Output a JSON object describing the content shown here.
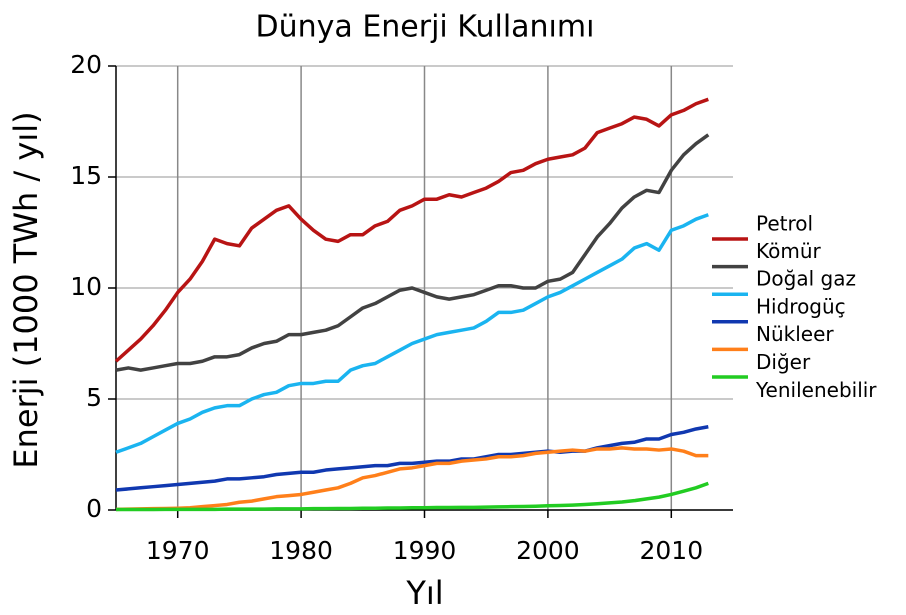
{
  "chart_data": {
    "type": "line",
    "title": "Dünya Enerji Kullanımı",
    "x_label": "Yıl",
    "y_label": "Enerji (1000 TWh / yıl)",
    "x": [
      1965,
      1966,
      1967,
      1968,
      1969,
      1970,
      1971,
      1972,
      1973,
      1974,
      1975,
      1976,
      1977,
      1978,
      1979,
      1980,
      1981,
      1982,
      1983,
      1984,
      1985,
      1986,
      1987,
      1988,
      1989,
      1990,
      1991,
      1992,
      1993,
      1994,
      1995,
      1996,
      1997,
      1998,
      1999,
      2000,
      2001,
      2002,
      2003,
      2004,
      2005,
      2006,
      2007,
      2008,
      2009,
      2010,
      2011,
      2012,
      2013
    ],
    "xlim": [
      1965,
      2015
    ],
    "xticks": [
      1970,
      1980,
      1990,
      2000,
      2010
    ],
    "ylim": [
      0,
      20
    ],
    "yticks": [
      0,
      5,
      10,
      15,
      20
    ],
    "grid": true,
    "legend": "right",
    "series": [
      {
        "name": "Petrol",
        "color": "#b81414",
        "values": [
          6.7,
          7.2,
          7.7,
          8.3,
          9.0,
          9.8,
          10.4,
          11.2,
          12.2,
          12.0,
          11.9,
          12.7,
          13.1,
          13.5,
          13.7,
          13.1,
          12.6,
          12.2,
          12.1,
          12.4,
          12.4,
          12.8,
          13.0,
          13.5,
          13.7,
          14.0,
          14.0,
          14.2,
          14.1,
          14.3,
          14.5,
          14.8,
          15.2,
          15.3,
          15.6,
          15.8,
          15.9,
          16.0,
          16.3,
          17.0,
          17.2,
          17.4,
          17.7,
          17.6,
          17.3,
          17.8,
          18.0,
          18.3,
          18.5
        ]
      },
      {
        "name": "Kömür",
        "color": "#424242",
        "values": [
          6.3,
          6.4,
          6.3,
          6.4,
          6.5,
          6.6,
          6.6,
          6.7,
          6.9,
          6.9,
          7.0,
          7.3,
          7.5,
          7.6,
          7.9,
          7.9,
          8.0,
          8.1,
          8.3,
          8.7,
          9.1,
          9.3,
          9.6,
          9.9,
          10.0,
          9.8,
          9.6,
          9.5,
          9.6,
          9.7,
          9.9,
          10.1,
          10.1,
          10.0,
          10.0,
          10.3,
          10.4,
          10.7,
          11.5,
          12.3,
          12.9,
          13.6,
          14.1,
          14.4,
          14.3,
          15.3,
          16.0,
          16.5,
          16.9
        ]
      },
      {
        "name": "Doğal gaz",
        "color": "#1ab4f0",
        "values": [
          2.6,
          2.8,
          3.0,
          3.3,
          3.6,
          3.9,
          4.1,
          4.4,
          4.6,
          4.7,
          4.7,
          5.0,
          5.2,
          5.3,
          5.6,
          5.7,
          5.7,
          5.8,
          5.8,
          6.3,
          6.5,
          6.6,
          6.9,
          7.2,
          7.5,
          7.7,
          7.9,
          8.0,
          8.1,
          8.2,
          8.5,
          8.9,
          8.9,
          9.0,
          9.3,
          9.6,
          9.8,
          10.1,
          10.4,
          10.7,
          11.0,
          11.3,
          11.8,
          12.0,
          11.7,
          12.6,
          12.8,
          13.1,
          13.3
        ]
      },
      {
        "name": "Hidrogüç",
        "color": "#1038b0",
        "values": [
          0.9,
          0.95,
          1.0,
          1.05,
          1.1,
          1.15,
          1.2,
          1.25,
          1.3,
          1.4,
          1.4,
          1.45,
          1.5,
          1.6,
          1.65,
          1.7,
          1.7,
          1.8,
          1.85,
          1.9,
          1.95,
          2.0,
          2.0,
          2.1,
          2.1,
          2.15,
          2.2,
          2.2,
          2.3,
          2.3,
          2.4,
          2.5,
          2.5,
          2.55,
          2.6,
          2.65,
          2.6,
          2.65,
          2.65,
          2.8,
          2.9,
          3.0,
          3.05,
          3.2,
          3.2,
          3.4,
          3.5,
          3.65,
          3.75
        ]
      },
      {
        "name": "Nükleer",
        "color": "#ff7f1a",
        "values": [
          0.03,
          0.04,
          0.05,
          0.06,
          0.07,
          0.08,
          0.1,
          0.15,
          0.2,
          0.25,
          0.35,
          0.4,
          0.5,
          0.6,
          0.65,
          0.7,
          0.8,
          0.9,
          1.0,
          1.2,
          1.45,
          1.55,
          1.7,
          1.85,
          1.9,
          2.0,
          2.1,
          2.1,
          2.2,
          2.25,
          2.3,
          2.4,
          2.4,
          2.45,
          2.55,
          2.6,
          2.65,
          2.7,
          2.65,
          2.75,
          2.75,
          2.8,
          2.75,
          2.75,
          2.7,
          2.75,
          2.65,
          2.45,
          2.45
        ]
      },
      {
        "name": "Diğer\nYenilenebilir",
        "color": "#22cc22",
        "values": [
          0.02,
          0.02,
          0.02,
          0.02,
          0.03,
          0.03,
          0.03,
          0.03,
          0.03,
          0.04,
          0.04,
          0.04,
          0.04,
          0.05,
          0.05,
          0.05,
          0.06,
          0.06,
          0.07,
          0.07,
          0.08,
          0.08,
          0.09,
          0.09,
          0.1,
          0.1,
          0.11,
          0.11,
          0.12,
          0.12,
          0.13,
          0.14,
          0.15,
          0.16,
          0.17,
          0.19,
          0.2,
          0.22,
          0.25,
          0.28,
          0.32,
          0.36,
          0.42,
          0.5,
          0.58,
          0.7,
          0.85,
          1.0,
          1.2
        ]
      }
    ]
  }
}
